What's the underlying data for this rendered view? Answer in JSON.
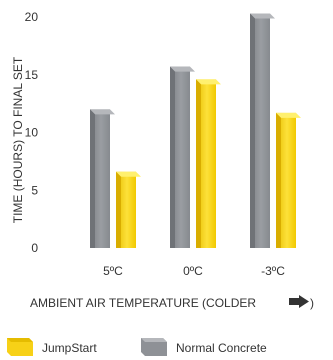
{
  "chart_data": {
    "type": "bar",
    "title": "",
    "xlabel": "AMBIENT AIR TEMPERATURE (COLDER",
    "ylabel": "TIME (HOURS) TO FINAL SET",
    "categories": [
      "5ºC",
      "0ºC",
      "-3ºC"
    ],
    "yticks": [
      "0",
      "5",
      "10",
      "15",
      "20"
    ],
    "ylim": [
      0,
      20
    ],
    "grid": false,
    "legend_position": "bottom",
    "series": [
      {
        "name": "Normal Concrete",
        "values": [
          12.0,
          15.7,
          20.3
        ],
        "color": "#8e9196"
      },
      {
        "name": "JumpStart",
        "values": [
          6.6,
          14.6,
          11.7
        ],
        "color": "#f7d117"
      }
    ],
    "legend": [
      "JumpStart",
      "Normal Concrete"
    ],
    "xlabel_arrow_icon": "right-arrow-icon"
  }
}
